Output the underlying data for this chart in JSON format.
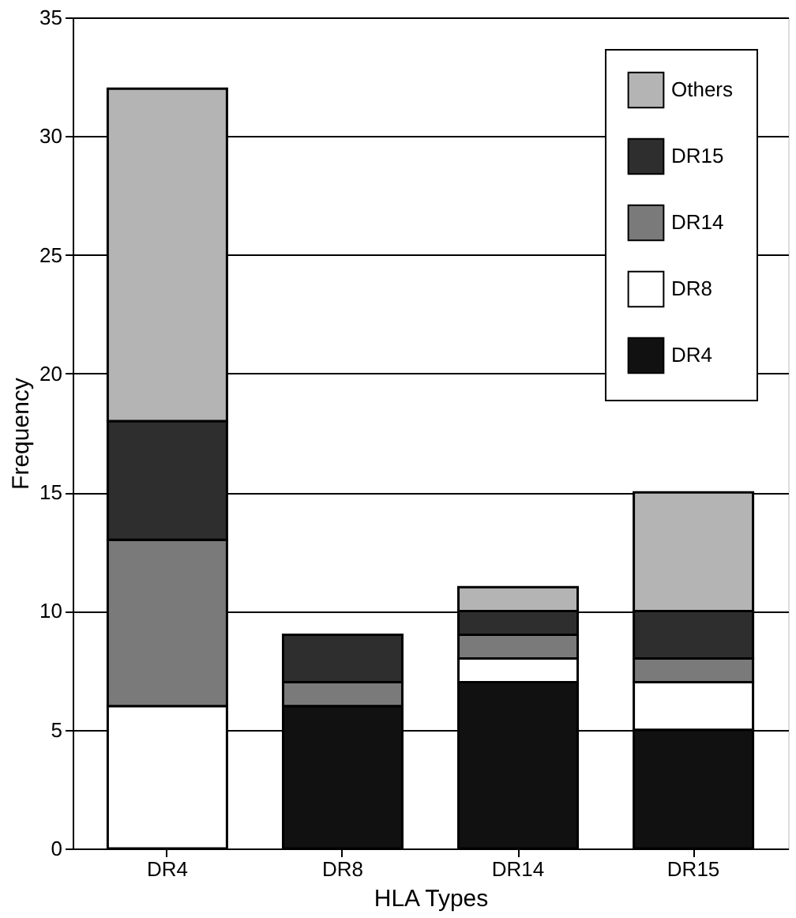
{
  "chart_data": {
    "type": "bar",
    "stacked": true,
    "xlabel": "HLA Types",
    "ylabel": "Frequency",
    "categories": [
      "DR4",
      "DR8",
      "DR14",
      "DR15"
    ],
    "series": [
      {
        "name": "DR4",
        "color": "#111111",
        "values": [
          0,
          6,
          7,
          5
        ]
      },
      {
        "name": "DR8",
        "color": "#ffffff",
        "values": [
          6,
          0,
          1,
          2
        ]
      },
      {
        "name": "DR14",
        "color": "#7a7a7a",
        "values": [
          7,
          1,
          1,
          1
        ]
      },
      {
        "name": "DR15",
        "color": "#2e2e2e",
        "values": [
          5,
          2,
          1,
          2
        ]
      },
      {
        "name": "Others",
        "color": "#b4b4b4",
        "values": [
          14,
          0,
          1,
          5
        ]
      }
    ],
    "ylim": [
      0,
      35
    ],
    "yticks": [
      0,
      5,
      10,
      15,
      20,
      25,
      30,
      35
    ],
    "grid": "y",
    "legend": "top right"
  }
}
